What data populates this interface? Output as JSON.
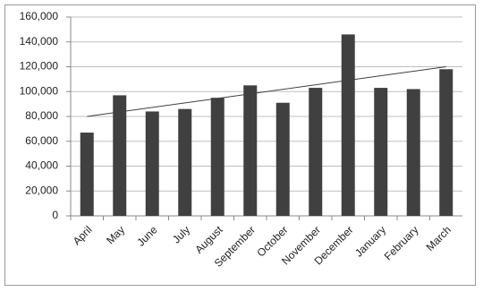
{
  "chart_data": {
    "type": "bar",
    "categories": [
      "April",
      "May",
      "June",
      "July",
      "August",
      "September",
      "October",
      "November",
      "December",
      "January",
      "February",
      "March"
    ],
    "values": [
      67000,
      97000,
      84000,
      86000,
      95000,
      105000,
      91000,
      103000,
      146000,
      103000,
      102000,
      118000
    ],
    "color": "#404040",
    "trendline": {
      "start": 80000,
      "end": 120000,
      "color": "#404040"
    },
    "ylim": [
      0,
      160000
    ],
    "yticks": [
      0,
      {
        "value": 20000,
        "label": "20,000"
      },
      {
        "value": 40000,
        "label": "40,000"
      },
      {
        "value": 60000,
        "label": "60,000"
      },
      {
        "value": 80000,
        "label": "80,000"
      },
      {
        "value": 100000,
        "label": "100,000"
      },
      {
        "value": 120000,
        "label": "120,000"
      },
      {
        "value": 140000,
        "label": "140,000"
      },
      {
        "value": 160000,
        "label": "160,000"
      }
    ],
    "grid": true
  }
}
